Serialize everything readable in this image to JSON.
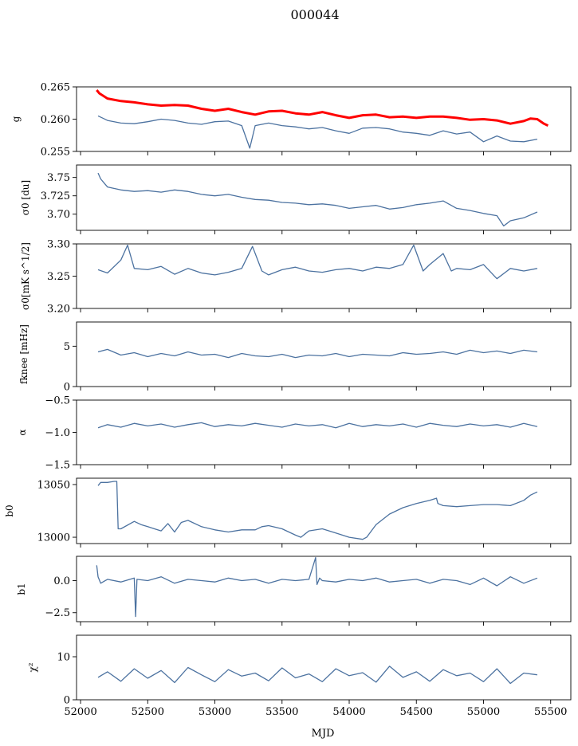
{
  "figure": {
    "title": "000044",
    "xlabel": "MJD"
  },
  "colors": {
    "series": "#4c72a0",
    "gain_highlight": "#ff0000",
    "frame": "#000000"
  },
  "chart_data": [
    {
      "type": "line",
      "ylabel": "g",
      "ylim": [
        0.255,
        0.265
      ],
      "yticks": [
        0.255,
        0.26,
        0.265
      ],
      "ytick_labels": [
        "0.255",
        "0.260",
        "0.265"
      ],
      "series": [
        {
          "color": "#ff0000",
          "x": [
            52120,
            52140,
            52200,
            52300,
            52400,
            52500,
            52600,
            52700,
            52800,
            52900,
            53000,
            53100,
            53200,
            53300,
            53400,
            53500,
            53600,
            53700,
            53800,
            53900,
            54000,
            54100,
            54200,
            54300,
            54400,
            54500,
            54600,
            54700,
            54800,
            54900,
            55000,
            55100,
            55200,
            55300,
            55350,
            55400,
            55450,
            55480
          ],
          "y": [
            0.2645,
            0.264,
            0.2632,
            0.2628,
            0.2626,
            0.2623,
            0.2621,
            0.2622,
            0.2621,
            0.2616,
            0.2613,
            0.2616,
            0.2611,
            0.2607,
            0.2612,
            0.2613,
            0.2609,
            0.2607,
            0.2611,
            0.2606,
            0.2602,
            0.2606,
            0.2607,
            0.2603,
            0.2604,
            0.2602,
            0.2604,
            0.2604,
            0.2602,
            0.2599,
            0.26,
            0.2598,
            0.2593,
            0.2597,
            0.2601,
            0.26,
            0.2593,
            0.259
          ]
        },
        {
          "color": "#4c72a0",
          "x": [
            52130,
            52200,
            52300,
            52400,
            52500,
            52600,
            52700,
            52800,
            52900,
            53000,
            53100,
            53200,
            53260,
            53300,
            53400,
            53500,
            53600,
            53700,
            53800,
            53900,
            54000,
            54100,
            54200,
            54300,
            54400,
            54500,
            54600,
            54700,
            54800,
            54900,
            55000,
            55100,
            55200,
            55300,
            55400
          ],
          "y": [
            0.2605,
            0.2598,
            0.2594,
            0.2593,
            0.2596,
            0.26,
            0.2598,
            0.2594,
            0.2592,
            0.2596,
            0.2597,
            0.259,
            0.2555,
            0.259,
            0.2594,
            0.259,
            0.2588,
            0.2585,
            0.2587,
            0.2582,
            0.2578,
            0.2586,
            0.2587,
            0.2585,
            0.258,
            0.2578,
            0.2575,
            0.2582,
            0.2577,
            0.258,
            0.2565,
            0.2574,
            0.2566,
            0.2565,
            0.2569
          ]
        }
      ]
    },
    {
      "type": "line",
      "ylabel": "σ0 [du]",
      "ylim": [
        3.678,
        3.767
      ],
      "yticks": [
        3.7,
        3.725,
        3.75
      ],
      "ytick_labels": [
        "3.70",
        "3.725",
        "3.75"
      ],
      "series": [
        {
          "color": "#4c72a0",
          "x": [
            52130,
            52150,
            52200,
            52300,
            52400,
            52500,
            52600,
            52700,
            52800,
            52900,
            53000,
            53100,
            53200,
            53300,
            53400,
            53500,
            53600,
            53700,
            53800,
            53900,
            54000,
            54100,
            54200,
            54300,
            54400,
            54500,
            54600,
            54700,
            54800,
            54900,
            55000,
            55100,
            55150,
            55200,
            55300,
            55400
          ],
          "y": [
            3.756,
            3.748,
            3.737,
            3.733,
            3.731,
            3.732,
            3.73,
            3.733,
            3.731,
            3.727,
            3.725,
            3.727,
            3.723,
            3.72,
            3.719,
            3.716,
            3.715,
            3.713,
            3.714,
            3.712,
            3.708,
            3.71,
            3.712,
            3.707,
            3.709,
            3.713,
            3.715,
            3.718,
            3.708,
            3.705,
            3.701,
            3.698,
            3.684,
            3.691,
            3.695,
            3.703
          ]
        }
      ]
    },
    {
      "type": "line",
      "ylabel": "σ0[mK s^1/2]",
      "ylim": [
        3.2,
        3.3
      ],
      "yticks": [
        3.2,
        3.25,
        3.3
      ],
      "ytick_labels": [
        "3.20",
        "3.25",
        "3.30"
      ],
      "series": [
        {
          "color": "#4c72a0",
          "x": [
            52130,
            52200,
            52300,
            52350,
            52400,
            52500,
            52600,
            52700,
            52800,
            52900,
            53000,
            53100,
            53200,
            53280,
            53350,
            53400,
            53500,
            53600,
            53700,
            53800,
            53900,
            54000,
            54100,
            54200,
            54300,
            54400,
            54480,
            54550,
            54600,
            54700,
            54760,
            54800,
            54900,
            55000,
            55100,
            55200,
            55300,
            55400
          ],
          "y": [
            3.26,
            3.255,
            3.275,
            3.298,
            3.262,
            3.26,
            3.265,
            3.253,
            3.262,
            3.255,
            3.252,
            3.256,
            3.262,
            3.296,
            3.258,
            3.252,
            3.26,
            3.264,
            3.258,
            3.256,
            3.26,
            3.262,
            3.258,
            3.264,
            3.262,
            3.268,
            3.298,
            3.258,
            3.268,
            3.285,
            3.258,
            3.262,
            3.26,
            3.268,
            3.246,
            3.262,
            3.258,
            3.262
          ]
        }
      ]
    },
    {
      "type": "line",
      "ylabel": "fknee [mHz]",
      "ylim": [
        0,
        8
      ],
      "yticks": [
        0,
        5
      ],
      "ytick_labels": [
        "0",
        "5"
      ],
      "series": [
        {
          "color": "#4c72a0",
          "x": [
            52130,
            52200,
            52300,
            52400,
            52500,
            52600,
            52700,
            52800,
            52900,
            53000,
            53100,
            53200,
            53300,
            53400,
            53500,
            53600,
            53700,
            53800,
            53900,
            54000,
            54100,
            54200,
            54300,
            54400,
            54500,
            54600,
            54700,
            54800,
            54900,
            55000,
            55100,
            55200,
            55300,
            55400
          ],
          "y": [
            4.3,
            4.6,
            3.9,
            4.2,
            3.7,
            4.1,
            3.8,
            4.3,
            3.9,
            4.0,
            3.6,
            4.1,
            3.8,
            3.7,
            4.0,
            3.6,
            3.9,
            3.8,
            4.1,
            3.7,
            4.0,
            3.9,
            3.8,
            4.2,
            4.0,
            4.1,
            4.3,
            4.0,
            4.5,
            4.2,
            4.4,
            4.1,
            4.5,
            4.3
          ]
        }
      ]
    },
    {
      "type": "line",
      "ylabel": "α",
      "ylim": [
        -1.5,
        -0.5
      ],
      "yticks": [
        -1.5,
        -1.0,
        -0.5
      ],
      "ytick_labels": [
        "−1.5",
        "−1.0",
        "−0.5"
      ],
      "series": [
        {
          "color": "#4c72a0",
          "x": [
            52130,
            52200,
            52300,
            52400,
            52500,
            52600,
            52700,
            52800,
            52900,
            53000,
            53100,
            53200,
            53300,
            53400,
            53500,
            53600,
            53700,
            53800,
            53900,
            54000,
            54100,
            54200,
            54300,
            54400,
            54500,
            54600,
            54700,
            54800,
            54900,
            55000,
            55100,
            55200,
            55300,
            55400
          ],
          "y": [
            -0.93,
            -0.88,
            -0.92,
            -0.86,
            -0.9,
            -0.87,
            -0.92,
            -0.88,
            -0.85,
            -0.91,
            -0.88,
            -0.9,
            -0.86,
            -0.89,
            -0.92,
            -0.87,
            -0.9,
            -0.88,
            -0.93,
            -0.86,
            -0.91,
            -0.88,
            -0.9,
            -0.87,
            -0.92,
            -0.86,
            -0.89,
            -0.91,
            -0.87,
            -0.9,
            -0.88,
            -0.92,
            -0.86,
            -0.91
          ]
        }
      ]
    },
    {
      "type": "line",
      "ylabel": "b0",
      "ylim": [
        12994,
        13056
      ],
      "yticks": [
        13000,
        13050
      ],
      "ytick_labels": [
        "13000",
        "13050"
      ],
      "series": [
        {
          "color": "#4c72a0",
          "x": [
            52130,
            52150,
            52200,
            52250,
            52270,
            52280,
            52300,
            52400,
            52450,
            52500,
            52550,
            52600,
            52650,
            52700,
            52750,
            52800,
            52900,
            53000,
            53100,
            53200,
            53300,
            53350,
            53400,
            53500,
            53600,
            53640,
            53700,
            53800,
            53900,
            54000,
            54100,
            54130,
            54200,
            54300,
            54400,
            54500,
            54600,
            54650,
            54660,
            54700,
            54800,
            54900,
            55000,
            55100,
            55200,
            55300,
            55350,
            55400
          ],
          "y": [
            13049,
            13052,
            13052,
            13053,
            13053,
            13008,
            13008,
            13015,
            13012,
            13010,
            13008,
            13006,
            13013,
            13005,
            13014,
            13016,
            13010,
            13007,
            13005,
            13007,
            13007,
            13010,
            13011,
            13008,
            13002,
            13000,
            13006,
            13008,
            13004,
            13000,
            12998,
            13000,
            13012,
            13022,
            13028,
            13032,
            13035,
            13037,
            13032,
            13030,
            13029,
            13030,
            13031,
            13031,
            13030,
            13035,
            13040,
            13043
          ]
        }
      ]
    },
    {
      "type": "line",
      "ylabel": "b1",
      "ylim": [
        -3.2,
        1.9
      ],
      "yticks": [
        -2.5,
        0.0
      ],
      "ytick_labels": [
        "−2.5",
        "0.0"
      ],
      "series": [
        {
          "color": "#4c72a0",
          "x": [
            52120,
            52130,
            52150,
            52200,
            52300,
            52400,
            52410,
            52420,
            52500,
            52600,
            52700,
            52800,
            52900,
            53000,
            53100,
            53200,
            53300,
            53400,
            53500,
            53600,
            53700,
            53750,
            53760,
            53780,
            53800,
            53900,
            54000,
            54100,
            54200,
            54300,
            54400,
            54500,
            54600,
            54700,
            54800,
            54900,
            55000,
            55100,
            55200,
            55300,
            55400
          ],
          "y": [
            1.2,
            0.3,
            -0.2,
            0.1,
            -0.1,
            0.2,
            -2.8,
            0.1,
            0.0,
            0.3,
            -0.2,
            0.1,
            0.0,
            -0.1,
            0.2,
            0.0,
            0.1,
            -0.2,
            0.1,
            0.0,
            0.1,
            1.8,
            -0.3,
            0.2,
            0.0,
            -0.1,
            0.1,
            0.0,
            0.2,
            -0.1,
            0.0,
            0.1,
            -0.2,
            0.1,
            0.0,
            -0.3,
            0.2,
            -0.4,
            0.3,
            -0.2,
            0.2
          ]
        }
      ]
    },
    {
      "type": "line",
      "ylabel": "χ²",
      "ylim": [
        0,
        15
      ],
      "yticks": [
        0,
        10
      ],
      "ytick_labels": [
        "0",
        "10"
      ],
      "xlim": [
        51970,
        55650
      ],
      "xticks": [
        52000,
        52500,
        53000,
        53500,
        54000,
        54500,
        55000,
        55500
      ],
      "xtick_labels": [
        "52000",
        "52500",
        "53000",
        "53500",
        "54000",
        "54500",
        "55000",
        "55500"
      ],
      "series": [
        {
          "color": "#4c72a0",
          "x": [
            52130,
            52200,
            52300,
            52400,
            52500,
            52600,
            52700,
            52800,
            52900,
            53000,
            53100,
            53200,
            53300,
            53400,
            53500,
            53600,
            53700,
            53800,
            53900,
            54000,
            54100,
            54200,
            54300,
            54400,
            54500,
            54600,
            54700,
            54800,
            54900,
            55000,
            55100,
            55200,
            55300,
            55400
          ],
          "y": [
            5.2,
            6.5,
            4.3,
            7.2,
            5.0,
            6.8,
            4.0,
            7.5,
            5.8,
            4.2,
            7.0,
            5.5,
            6.2,
            4.4,
            7.4,
            5.1,
            6.0,
            4.2,
            7.2,
            5.6,
            6.3,
            4.1,
            7.8,
            5.2,
            6.5,
            4.3,
            7.0,
            5.6,
            6.2,
            4.2,
            7.2,
            3.8,
            6.2,
            5.8
          ]
        }
      ]
    }
  ]
}
